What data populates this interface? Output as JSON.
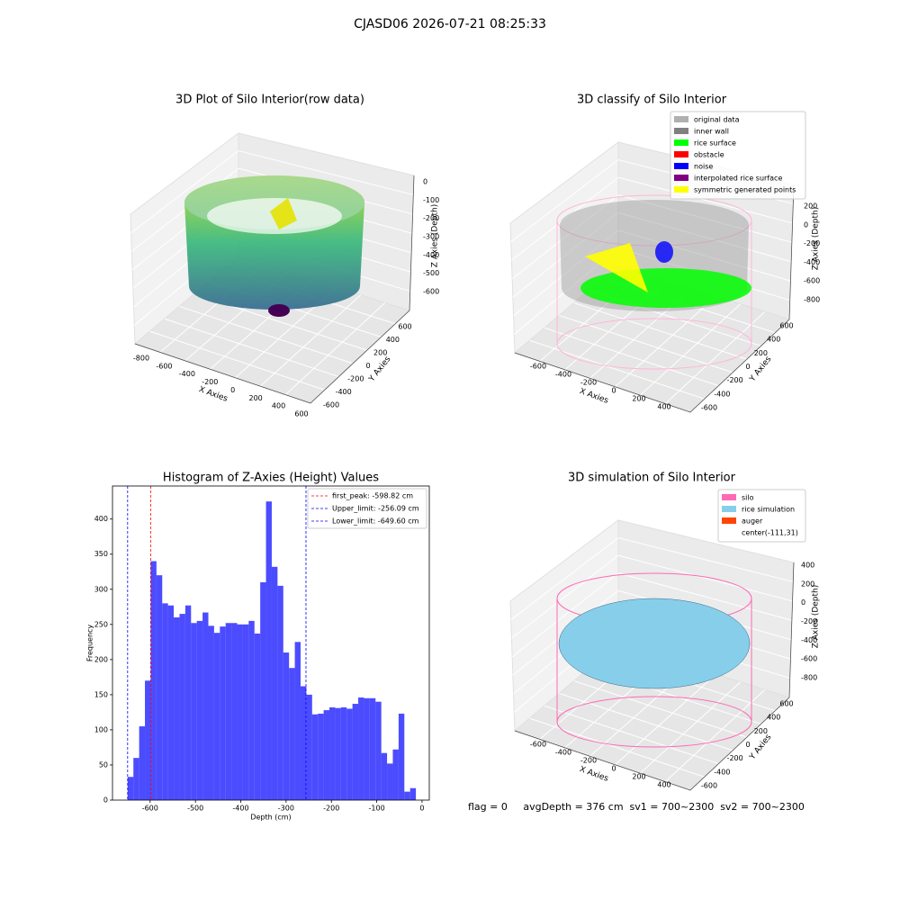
{
  "suptitle": "CJASD06 2026-07-21 08:25:33",
  "footer": "flag = 0     avgDepth = 376 cm  sv1 = 700~2300  sv2 = 700~2300",
  "chart_data": [
    {
      "type": "scatter3d",
      "title": "3D Plot of Silo Interior(row data)",
      "xlabel": "X Axies",
      "ylabel": "Y Axies",
      "zlabel": "Z Axies (Depth)",
      "xlim": [
        -800,
        600
      ],
      "xticks": [
        -800,
        -600,
        -400,
        -200,
        0,
        200,
        400,
        600
      ],
      "ylim": [
        -600,
        600
      ],
      "yticks": [
        -600,
        -400,
        -200,
        0,
        200,
        400,
        600
      ],
      "zlim": [
        -600,
        0
      ],
      "zticks": [
        -600,
        -500,
        -400,
        -300,
        -200,
        -100,
        0
      ]
    },
    {
      "type": "scatter3d",
      "title": "3D classify of Silo Interior",
      "xlabel": "X Axies",
      "ylabel": "Y Axies",
      "zlabel": "Z Axies (Depth)",
      "xlim": [
        -600,
        400
      ],
      "xticks": [
        -600,
        -400,
        -200,
        0,
        200,
        400
      ],
      "ylim": [
        -600,
        600
      ],
      "yticks": [
        -600,
        -400,
        -200,
        0,
        200,
        400,
        600
      ],
      "zlim": [
        -800,
        200
      ],
      "zticks": [
        -800,
        -600,
        -400,
        -200,
        0,
        200
      ],
      "legend": [
        {
          "name": "original data",
          "color": "#b0b0b0"
        },
        {
          "name": "inner wall",
          "color": "#808080"
        },
        {
          "name": "rice surface",
          "color": "#00ff00"
        },
        {
          "name": "obstacle",
          "color": "#ff0000"
        },
        {
          "name": "noise",
          "color": "#0000ff"
        },
        {
          "name": "interpolated rice surface",
          "color": "#800080"
        },
        {
          "name": "symmetric generated points",
          "color": "#ffff00"
        }
      ]
    },
    {
      "type": "histogram",
      "title": "Histogram of Z-Axies (Height) Values",
      "xlabel": "Depth (cm)",
      "ylabel": "Frequency",
      "color": "#0000ff",
      "alpha": 0.7,
      "bins": [
        -649.6,
        -636.88,
        -624.16,
        -611.44,
        -598.72,
        -586.0,
        -573.28,
        -560.56,
        -547.84,
        -535.12,
        -522.4,
        -509.68,
        -496.96,
        -484.24,
        -471.52,
        -458.8,
        -446.08,
        -433.36,
        -420.64,
        -407.92,
        -395.2,
        -382.48,
        -369.76,
        -357.04,
        -344.32,
        -331.6,
        -318.88,
        -306.16,
        -293.44,
        -280.72,
        -268.0,
        -255.28,
        -242.56,
        -229.84,
        -217.12,
        -204.4,
        -191.68,
        -178.96,
        -166.24,
        -153.52,
        -140.8,
        -128.08,
        -115.36,
        -102.64,
        -89.92,
        -77.2,
        -64.48,
        -51.76,
        -39.04,
        -26.32,
        -13.6
      ],
      "values": [
        33,
        60,
        105,
        170,
        340,
        320,
        280,
        277,
        260,
        265,
        277,
        252,
        255,
        267,
        248,
        238,
        247,
        252,
        252,
        250,
        250,
        255,
        237,
        310,
        425,
        332,
        305,
        210,
        188,
        225,
        162,
        150,
        122,
        123,
        128,
        132,
        131,
        132,
        130,
        137,
        146,
        145,
        145,
        140,
        67,
        52,
        72,
        123,
        12,
        17
      ],
      "xlim": [
        -683,
        16
      ],
      "xticks": [
        -600,
        -500,
        -400,
        -300,
        -200,
        -100,
        0
      ],
      "ylim": [
        0,
        447
      ],
      "yticks": [
        0,
        50,
        100,
        150,
        200,
        250,
        300,
        350,
        400
      ],
      "vlines": [
        {
          "name": "first_peak: -598.82 cm",
          "value": -598.82,
          "color": "#ff0000"
        },
        {
          "name": "Upper_limit: -256.09 cm",
          "value": -256.09,
          "color": "#0000ff"
        },
        {
          "name": "Lower_limit: -649.60 cm",
          "value": -649.6,
          "color": "#0000ff"
        }
      ]
    },
    {
      "type": "surface3d",
      "title": "3D simulation of Silo Interior",
      "xlabel": "X Axies",
      "ylabel": "Y Axies",
      "zlabel": "Z Axies (Depth)",
      "xlim": [
        -600,
        400
      ],
      "xticks": [
        -600,
        -400,
        -200,
        0,
        200,
        400
      ],
      "ylim": [
        -600,
        600
      ],
      "yticks": [
        -600,
        -400,
        -200,
        0,
        200,
        400,
        600
      ],
      "zlim": [
        -800,
        400
      ],
      "zticks": [
        -800,
        -600,
        -400,
        -200,
        0,
        200,
        400
      ],
      "legend": [
        {
          "name": "silo",
          "color": "#ff69b4"
        },
        {
          "name": "rice simulation",
          "color": "#87ceeb"
        },
        {
          "name": "auger",
          "color": "#ff4500"
        },
        {
          "name": "center(-111,31)",
          "color": "none"
        }
      ]
    }
  ]
}
